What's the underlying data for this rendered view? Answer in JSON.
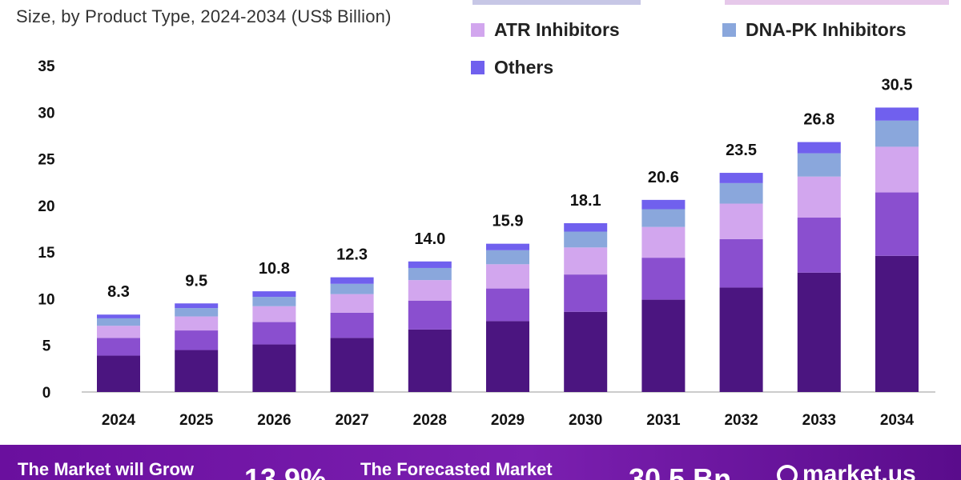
{
  "chart_data": {
    "type": "bar",
    "stacked": true,
    "title": "Size, by Product Type, 2024-2034 (US$ Billion)",
    "xlabel": "",
    "ylabel": "",
    "ylim": [
      0,
      35
    ],
    "yticks": [
      0,
      5,
      10,
      15,
      20,
      25,
      30,
      35
    ],
    "grid": false,
    "categories": [
      "2024",
      "2025",
      "2026",
      "2027",
      "2028",
      "2029",
      "2030",
      "2031",
      "2032",
      "2033",
      "2034"
    ],
    "totals": [
      8.3,
      9.5,
      10.8,
      12.3,
      14.0,
      15.9,
      18.1,
      20.6,
      23.5,
      26.8,
      30.5
    ],
    "total_labels": [
      "8.3",
      "9.5",
      "10.8",
      "12.3",
      "14.0",
      "15.9",
      "18.1",
      "20.6",
      "23.5",
      "26.8",
      "30.5"
    ],
    "series": [
      {
        "name": "",
        "color": "#4b1580",
        "values": [
          3.9,
          4.5,
          5.1,
          5.8,
          6.7,
          7.6,
          8.6,
          9.9,
          11.2,
          12.8,
          14.6
        ]
      },
      {
        "name": "",
        "color": "#8a4fcf",
        "values": [
          1.9,
          2.1,
          2.4,
          2.7,
          3.1,
          3.5,
          4.0,
          4.5,
          5.2,
          5.9,
          6.8
        ]
      },
      {
        "name": "ATR Inhibitors",
        "color": "#d2a6ee",
        "values": [
          1.3,
          1.5,
          1.7,
          2.0,
          2.2,
          2.6,
          2.9,
          3.3,
          3.8,
          4.4,
          4.9
        ]
      },
      {
        "name": "DNA-PK Inhibitors",
        "color": "#8aa7dc",
        "values": [
          0.8,
          0.9,
          1.0,
          1.1,
          1.3,
          1.5,
          1.7,
          1.9,
          2.2,
          2.5,
          2.8
        ]
      },
      {
        "name": "Others",
        "color": "#7060ee",
        "values": [
          0.4,
          0.5,
          0.6,
          0.7,
          0.7,
          0.7,
          0.9,
          1.0,
          1.1,
          1.2,
          1.4
        ]
      }
    ]
  },
  "legend": {
    "items": [
      {
        "label": "ATR Inhibitors",
        "color": "#d2a6ee"
      },
      {
        "label": "DNA-PK Inhibitors",
        "color": "#8aa7dc"
      },
      {
        "label": "Others",
        "color": "#7060ee"
      }
    ]
  },
  "footer": {
    "grow_text": "The Market will Grow",
    "cagr_value": "13.9%",
    "forecast_text": "The Forecasted Market",
    "forecast_value": "30.5 Bn",
    "brand": "market.us"
  },
  "colors": {
    "footer_bg": "#6a0f9e",
    "axis": "#bbbbbb"
  }
}
